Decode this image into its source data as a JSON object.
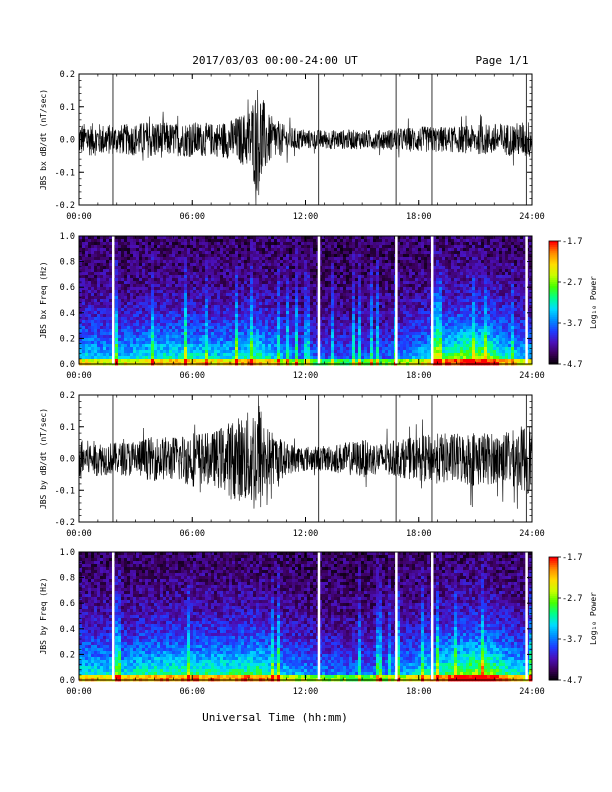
{
  "header": {
    "title": "2017/03/03  00:00-24:00 UT",
    "page": "Page 1/1"
  },
  "footer": {
    "xlabel": "Universal Time (hh:mm)"
  },
  "x_ticks": [
    "00:00",
    "06:00",
    "12:00",
    "18:00",
    "24:00"
  ],
  "colorbar": {
    "label": "Log₁₀ Power",
    "ticks": [
      "-1.7",
      "-2.7",
      "-3.7",
      "-4.7"
    ],
    "range": [
      -4.7,
      -1.7
    ],
    "colors": [
      "#000000",
      "#3b005a",
      "#4b0fb8",
      "#1f3cff",
      "#008cff",
      "#00dcff",
      "#00ff8c",
      "#46ff00",
      "#c8ff00",
      "#ffdc00",
      "#ff8c00",
      "#ff0000"
    ]
  },
  "gap_hours": [
    1.8,
    12.7,
    16.8,
    18.7,
    23.7
  ],
  "chart_data": [
    {
      "type": "line",
      "title": "",
      "ylabel": "JBS bx dB/dt (nT/sec)",
      "xlabel": "",
      "xlim": [
        0,
        24
      ],
      "ylim": [
        -0.2,
        0.2
      ],
      "yticks": [
        "0.2",
        "0.1",
        "0.0",
        "-0.1",
        "-0.2"
      ],
      "envelope_hours": [
        0,
        1,
        2,
        3,
        4,
        5,
        6,
        7,
        8,
        9,
        9.5,
        10,
        11,
        12,
        13,
        14,
        15,
        16,
        17,
        18,
        19,
        20,
        21,
        22,
        23,
        24
      ],
      "envelope_amplitude": [
        0.05,
        0.05,
        0.045,
        0.05,
        0.06,
        0.05,
        0.055,
        0.05,
        0.06,
        0.09,
        0.18,
        0.08,
        0.04,
        0.03,
        0.03,
        0.03,
        0.03,
        0.03,
        0.035,
        0.04,
        0.04,
        0.04,
        0.045,
        0.05,
        0.05,
        0.06
      ]
    },
    {
      "type": "heatmap",
      "title": "",
      "ylabel": "JBS bx Freq (Hz)",
      "xlabel": "",
      "xlim": [
        0,
        24
      ],
      "ylim": [
        0.0,
        1.0
      ],
      "yticks": [
        "1.0",
        "0.8",
        "0.6",
        "0.4",
        "0.2",
        "0.0"
      ],
      "zlabel": "Log₁₀ Power",
      "zlim": [
        -4.7,
        -1.7
      ],
      "activity_hours": [
        0,
        2,
        4,
        6,
        8,
        9.5,
        11,
        13,
        16,
        18,
        19.5,
        20.5,
        21.5,
        23,
        24
      ],
      "activity_level": [
        0.45,
        0.4,
        0.5,
        0.5,
        0.45,
        0.55,
        0.35,
        0.25,
        0.25,
        0.4,
        0.6,
        0.7,
        0.7,
        0.45,
        0.4
      ]
    },
    {
      "type": "line",
      "title": "",
      "ylabel": "JBS by dB/dt (nT/sec)",
      "xlabel": "",
      "xlim": [
        0,
        24
      ],
      "ylim": [
        -0.2,
        0.2
      ],
      "yticks": [
        "0.2",
        "0.1",
        "0.0",
        "-0.1",
        "-0.2"
      ],
      "envelope_hours": [
        0,
        1,
        2,
        3,
        4,
        5,
        6,
        7,
        8,
        9,
        9.5,
        10,
        11,
        12,
        13,
        14,
        15,
        16,
        17,
        18,
        19,
        20,
        21,
        22,
        23,
        24
      ],
      "envelope_amplitude": [
        0.06,
        0.055,
        0.05,
        0.06,
        0.07,
        0.07,
        0.09,
        0.08,
        0.12,
        0.15,
        0.2,
        0.1,
        0.05,
        0.04,
        0.04,
        0.05,
        0.06,
        0.05,
        0.06,
        0.07,
        0.08,
        0.08,
        0.09,
        0.08,
        0.09,
        0.12
      ]
    },
    {
      "type": "heatmap",
      "title": "",
      "ylabel": "JBS by Freq (Hz)",
      "xlabel": "",
      "xlim": [
        0,
        24
      ],
      "ylim": [
        0.0,
        1.0
      ],
      "yticks": [
        "1.0",
        "0.8",
        "0.6",
        "0.4",
        "0.2",
        "0.0"
      ],
      "zlabel": "Log₁₀ Power",
      "zlim": [
        -4.7,
        -1.7
      ],
      "activity_hours": [
        0,
        2,
        4,
        6,
        8,
        9.5,
        11,
        13,
        16,
        18,
        19.5,
        20.5,
        21.5,
        23,
        24
      ],
      "activity_level": [
        0.5,
        0.45,
        0.55,
        0.55,
        0.55,
        0.6,
        0.4,
        0.3,
        0.3,
        0.45,
        0.6,
        0.7,
        0.75,
        0.5,
        0.45
      ]
    }
  ]
}
